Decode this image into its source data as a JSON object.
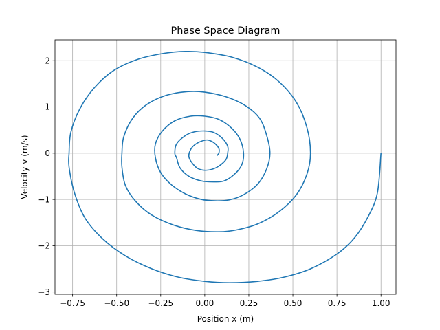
{
  "chart_data": {
    "type": "line",
    "title": "Phase Space Diagram",
    "xlabel": "Position x (m)",
    "ylabel": "Velocity v (m/s)",
    "xlim": [
      -0.85,
      1.085
    ],
    "ylim": [
      -3.05,
      2.45
    ],
    "xticks": [
      -0.75,
      -0.5,
      -0.25,
      0.0,
      0.25,
      0.5,
      0.75,
      1.0
    ],
    "xtick_labels": [
      "−0.75",
      "−0.50",
      "−0.25",
      "0.00",
      "0.25",
      "0.50",
      "0.75",
      "1.00"
    ],
    "yticks": [
      -3,
      -2,
      -1,
      0,
      1,
      2
    ],
    "ytick_labels": [
      "−3",
      "−2",
      "−1",
      "0",
      "1",
      "2"
    ],
    "grid": true,
    "legend": "none",
    "series": [
      {
        "color": "#1f77b4",
        "points": [
          [
            1.0,
            0.0
          ],
          [
            0.98,
            -0.85
          ],
          [
            0.93,
            -1.35
          ],
          [
            0.85,
            -1.83
          ],
          [
            0.75,
            -2.18
          ],
          [
            0.6,
            -2.5
          ],
          [
            0.45,
            -2.68
          ],
          [
            0.3,
            -2.77
          ],
          [
            0.14,
            -2.8
          ],
          [
            0.0,
            -2.77
          ],
          [
            -0.15,
            -2.68
          ],
          [
            -0.3,
            -2.5
          ],
          [
            -0.45,
            -2.22
          ],
          [
            -0.58,
            -1.85
          ],
          [
            -0.68,
            -1.4
          ],
          [
            -0.74,
            -0.85
          ],
          [
            -0.77,
            -0.3
          ],
          [
            -0.77,
            0.0
          ],
          [
            -0.76,
            0.45
          ],
          [
            -0.71,
            0.95
          ],
          [
            -0.63,
            1.4
          ],
          [
            -0.52,
            1.78
          ],
          [
            -0.38,
            2.03
          ],
          [
            -0.23,
            2.16
          ],
          [
            -0.11,
            2.2
          ],
          [
            0.0,
            2.18
          ],
          [
            0.15,
            2.08
          ],
          [
            0.3,
            1.86
          ],
          [
            0.42,
            1.55
          ],
          [
            0.52,
            1.1
          ],
          [
            0.58,
            0.55
          ],
          [
            0.6,
            0.0
          ],
          [
            0.58,
            -0.45
          ],
          [
            0.52,
            -0.9
          ],
          [
            0.42,
            -1.27
          ],
          [
            0.3,
            -1.53
          ],
          [
            0.18,
            -1.66
          ],
          [
            0.08,
            -1.7
          ],
          [
            -0.05,
            -1.67
          ],
          [
            -0.18,
            -1.55
          ],
          [
            -0.3,
            -1.34
          ],
          [
            -0.39,
            -1.05
          ],
          [
            -0.45,
            -0.7
          ],
          [
            -0.47,
            -0.3
          ],
          [
            -0.47,
            0.0
          ],
          [
            -0.46,
            0.35
          ],
          [
            -0.41,
            0.75
          ],
          [
            -0.33,
            1.05
          ],
          [
            -0.22,
            1.25
          ],
          [
            -0.1,
            1.33
          ],
          [
            0.0,
            1.32
          ],
          [
            0.12,
            1.22
          ],
          [
            0.23,
            1.03
          ],
          [
            0.31,
            0.76
          ],
          [
            0.35,
            0.4
          ],
          [
            0.37,
            0.0
          ],
          [
            0.35,
            -0.35
          ],
          [
            0.3,
            -0.67
          ],
          [
            0.22,
            -0.9
          ],
          [
            0.14,
            -1.01
          ],
          [
            0.06,
            -1.03
          ],
          [
            -0.02,
            -1.0
          ],
          [
            -0.11,
            -0.88
          ],
          [
            -0.19,
            -0.68
          ],
          [
            -0.25,
            -0.42
          ],
          [
            -0.28,
            -0.1
          ],
          [
            -0.28,
            0.2
          ],
          [
            -0.24,
            0.48
          ],
          [
            -0.17,
            0.7
          ],
          [
            -0.08,
            0.8
          ],
          [
            0.0,
            0.8
          ],
          [
            0.08,
            0.73
          ],
          [
            0.15,
            0.55
          ],
          [
            0.2,
            0.3
          ],
          [
            0.22,
            0.0
          ],
          [
            0.21,
            -0.25
          ],
          [
            0.17,
            -0.45
          ],
          [
            0.11,
            -0.6
          ],
          [
            0.05,
            -0.62
          ],
          [
            -0.02,
            -0.6
          ],
          [
            -0.09,
            -0.5
          ],
          [
            -0.14,
            -0.32
          ],
          [
            -0.16,
            -0.1
          ],
          [
            -0.17,
            0.0
          ],
          [
            -0.16,
            0.2
          ],
          [
            -0.11,
            0.38
          ],
          [
            -0.06,
            0.46
          ],
          [
            0.0,
            0.48
          ],
          [
            0.05,
            0.45
          ],
          [
            0.1,
            0.32
          ],
          [
            0.13,
            0.15
          ],
          [
            0.13,
            0.0
          ],
          [
            0.12,
            -0.14
          ],
          [
            0.08,
            -0.28
          ],
          [
            0.04,
            -0.35
          ],
          [
            0.0,
            -0.37
          ],
          [
            -0.04,
            -0.33
          ],
          [
            -0.07,
            -0.22
          ],
          [
            -0.09,
            -0.08
          ],
          [
            -0.08,
            0.08
          ],
          [
            -0.05,
            0.2
          ],
          [
            0.0,
            0.28
          ],
          [
            0.03,
            0.27
          ],
          [
            0.06,
            0.2
          ],
          [
            0.08,
            0.1
          ],
          [
            0.08,
            0.0
          ],
          [
            0.07,
            -0.05
          ]
        ]
      }
    ]
  }
}
